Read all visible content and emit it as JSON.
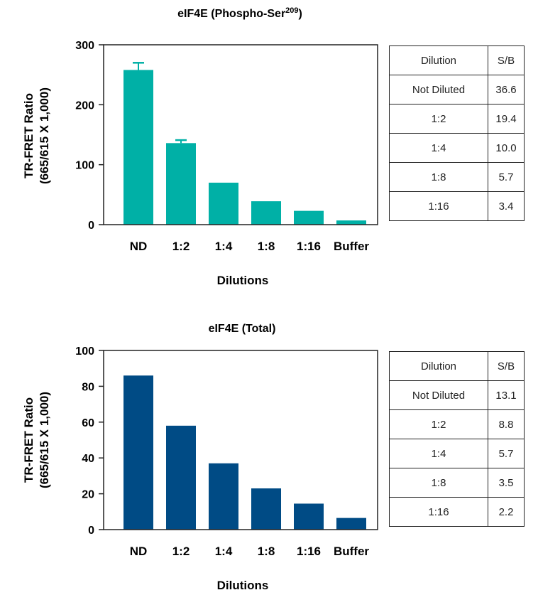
{
  "charts": [
    {
      "title": "eIF4E (Phospho-Ser",
      "title_sup": "209",
      "title_close": ")",
      "ylabel_line1": "TR-FRET Ratio",
      "ylabel_line2": "(665/615 X 1,000)",
      "xlabel": "Dilutions",
      "yticks": [
        "0",
        "100",
        "200",
        "300"
      ],
      "table": {
        "headers": [
          "Dilution",
          "S/B"
        ],
        "rows": [
          [
            "Not Diluted",
            "36.6"
          ],
          [
            "1:2",
            "19.4"
          ],
          [
            "1:4",
            "10.0"
          ],
          [
            "1:8",
            "5.7"
          ],
          [
            "1:16",
            "3.4"
          ]
        ]
      }
    },
    {
      "title": "eIF4E (Total)",
      "ylabel_line1": "TR-FRET Ratio",
      "ylabel_line2": "(665/615 X 1,000)",
      "xlabel": "Dilutions",
      "yticks": [
        "0",
        "20",
        "40",
        "60",
        "80",
        "100"
      ],
      "table": {
        "headers": [
          "Dilution",
          "S/B"
        ],
        "rows": [
          [
            "Not Diluted",
            "13.1"
          ],
          [
            "1:2",
            "8.8"
          ],
          [
            "1:4",
            "5.7"
          ],
          [
            "1:8",
            "3.5"
          ],
          [
            "1:16",
            "2.2"
          ]
        ]
      }
    }
  ],
  "chart_data": [
    {
      "type": "bar",
      "title": "eIF4E (Phospho-Ser209)",
      "xlabel": "Dilutions",
      "ylabel": "TR-FRET Ratio (665/615 X 1,000)",
      "categories": [
        "ND",
        "1:2",
        "1:4",
        "1:8",
        "1:16",
        "Buffer"
      ],
      "values": [
        258,
        136,
        70,
        39,
        23,
        7
      ],
      "error_plus": [
        12,
        5,
        0,
        0,
        0,
        0
      ],
      "ylim": [
        0,
        300
      ],
      "color": "#00b0a6",
      "grid": false
    },
    {
      "type": "bar",
      "title": "eIF4E (Total)",
      "xlabel": "Dilutions",
      "ylabel": "TR-FRET Ratio (665/615 X 1,000)",
      "categories": [
        "ND",
        "1:2",
        "1:4",
        "1:8",
        "1:16",
        "Buffer"
      ],
      "values": [
        86,
        58,
        37,
        23,
        14.5,
        6.5
      ],
      "error_plus": [
        0,
        0,
        0,
        0,
        0,
        0
      ],
      "ylim": [
        0,
        100
      ],
      "color": "#004b85",
      "grid": false
    }
  ]
}
